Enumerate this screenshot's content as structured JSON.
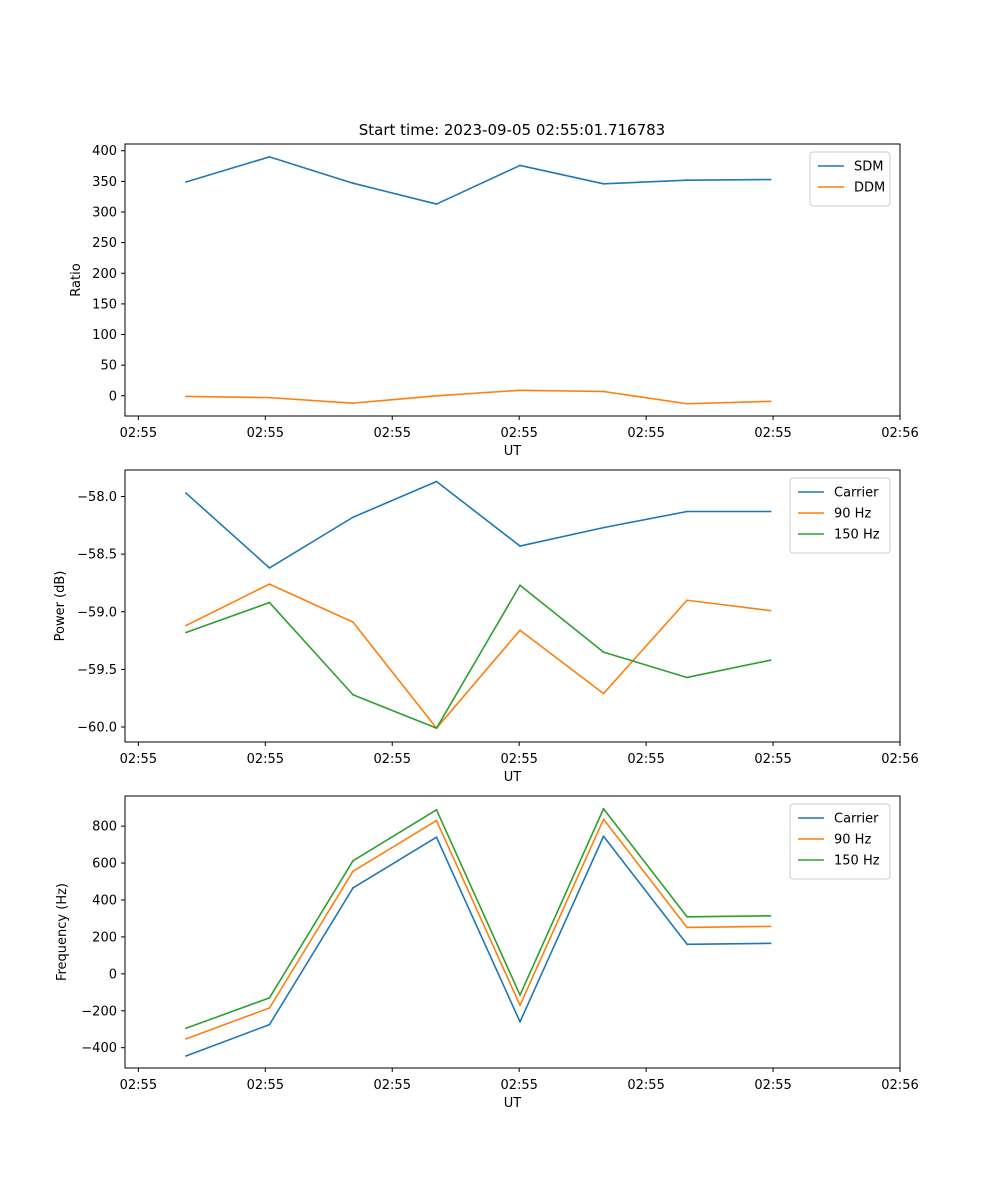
{
  "figure_title": "Start time: 2023-09-05 02:55:01.716783",
  "colors": {
    "c0": "#1f77b4",
    "c1": "#ff7f0e",
    "c2": "#2ca02c"
  },
  "chart_data": [
    {
      "type": "line",
      "title": "Start time: 2023-09-05 02:55:01.716783",
      "xlabel": "UT",
      "ylabel": "Ratio",
      "x": [
        1,
        2,
        3,
        4,
        5,
        6,
        7,
        8
      ],
      "xlim": [
        0.27,
        9.55
      ],
      "ylim": [
        -33,
        411
      ],
      "yticks": [
        0,
        50,
        100,
        150,
        200,
        250,
        300,
        350,
        400
      ],
      "ytick_labels": [
        "0",
        "50",
        "100",
        "150",
        "200",
        "250",
        "300",
        "350",
        "400"
      ],
      "xticks": [
        0.43,
        1.95,
        3.47,
        4.99,
        6.51,
        8.03,
        9.55
      ],
      "xtick_labels": [
        "02:55",
        "02:55",
        "02:55",
        "02:55",
        "02:55",
        "02:55",
        "02:56"
      ],
      "legend_position": "top-right",
      "series": [
        {
          "name": "SDM",
          "color": "#1f77b4",
          "values": [
            349,
            390,
            347,
            313,
            376,
            346,
            352,
            353
          ]
        },
        {
          "name": "DDM",
          "color": "#ff7f0e",
          "values": [
            -1,
            -3,
            -12,
            0,
            9,
            7,
            -13,
            -9
          ]
        }
      ]
    },
    {
      "type": "line",
      "title": "",
      "xlabel": "UT",
      "ylabel": "Power (dB)",
      "x": [
        1,
        2,
        3,
        4,
        5,
        6,
        7,
        8
      ],
      "xlim": [
        0.27,
        9.55
      ],
      "ylim": [
        -60.13,
        -57.77
      ],
      "yticks": [
        -58.0,
        -58.5,
        -59.0,
        -59.5,
        -60.0
      ],
      "ytick_labels": [
        "−58.0",
        "−58.5",
        "−59.0",
        "−59.5",
        "−60.0"
      ],
      "xticks": [
        0.43,
        1.95,
        3.47,
        4.99,
        6.51,
        8.03,
        9.55
      ],
      "xtick_labels": [
        "02:55",
        "02:55",
        "02:55",
        "02:55",
        "02:55",
        "02:55",
        "02:56"
      ],
      "legend_position": "top-right",
      "series": [
        {
          "name": "Carrier",
          "color": "#1f77b4",
          "values": [
            -57.97,
            -58.62,
            -58.18,
            -57.87,
            -58.43,
            -58.27,
            -58.13,
            -58.13
          ]
        },
        {
          "name": "90 Hz",
          "color": "#ff7f0e",
          "values": [
            -59.12,
            -58.76,
            -59.09,
            -60.01,
            -59.16,
            -59.71,
            -58.9,
            -58.99
          ]
        },
        {
          "name": "150 Hz",
          "color": "#2ca02c",
          "values": [
            -59.18,
            -58.92,
            -59.72,
            -60.01,
            -58.77,
            -59.35,
            -59.57,
            -59.42
          ]
        }
      ]
    },
    {
      "type": "line",
      "title": "",
      "xlabel": "UT",
      "ylabel": "Frequency (Hz)",
      "x": [
        1,
        2,
        3,
        4,
        5,
        6,
        7,
        8
      ],
      "xlim": [
        0.27,
        9.55
      ],
      "ylim": [
        -510,
        963
      ],
      "yticks": [
        -400,
        -200,
        0,
        200,
        400,
        600,
        800
      ],
      "ytick_labels": [
        "−400",
        "−200",
        "0",
        "200",
        "400",
        "600",
        "800"
      ],
      "xticks": [
        0.43,
        1.95,
        3.47,
        4.99,
        6.51,
        8.03,
        9.55
      ],
      "xtick_labels": [
        "02:55",
        "02:55",
        "02:55",
        "02:55",
        "02:55",
        "02:55",
        "02:56"
      ],
      "legend_position": "top-right",
      "series": [
        {
          "name": "Carrier",
          "color": "#1f77b4",
          "values": [
            -445,
            -275,
            465,
            740,
            -260,
            745,
            160,
            165
          ]
        },
        {
          "name": "90 Hz",
          "color": "#ff7f0e",
          "values": [
            -352,
            -185,
            555,
            830,
            -170,
            837,
            251,
            257
          ]
        },
        {
          "name": "150 Hz",
          "color": "#2ca02c",
          "values": [
            -295,
            -130,
            612,
            888,
            -115,
            894,
            309,
            314
          ]
        }
      ]
    }
  ]
}
